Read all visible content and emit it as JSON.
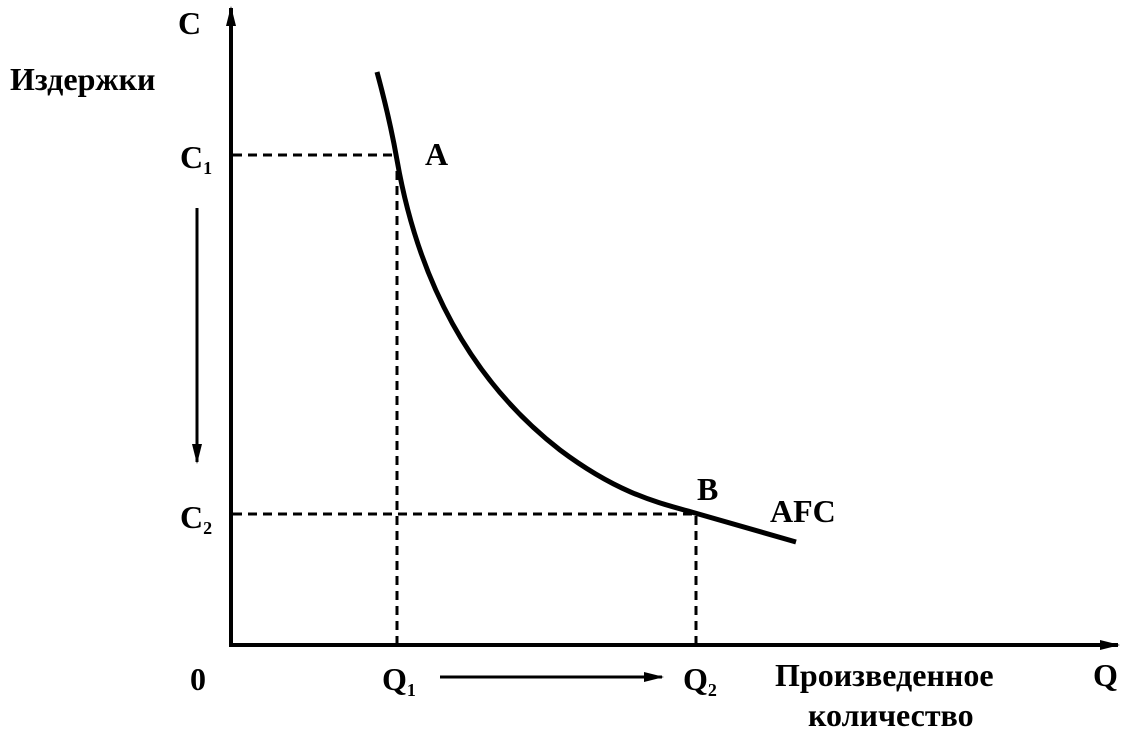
{
  "axes": {
    "y": {
      "symbol": "C",
      "label": "Издержки"
    },
    "x": {
      "symbol": "Q",
      "label_lines": [
        "Произведенное",
        "количество"
      ]
    },
    "origin": "0"
  },
  "y_ticks": [
    {
      "base": "C",
      "sub": "1"
    },
    {
      "base": "C",
      "sub": "2"
    }
  ],
  "x_ticks": [
    {
      "base": "Q",
      "sub": "1"
    },
    {
      "base": "Q",
      "sub": "2"
    }
  ],
  "points": [
    {
      "label": "A"
    },
    {
      "label": "B"
    }
  ],
  "curve": {
    "label": "AFC"
  }
}
